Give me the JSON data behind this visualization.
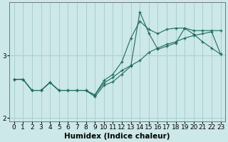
{
  "title": "",
  "xlabel": "Humidex (Indice chaleur)",
  "bg_color": "#cce8e8",
  "grid_color": "#aacfcf",
  "line_color": "#1e6b5e",
  "xlim": [
    -0.5,
    23.5
  ],
  "ylim": [
    1.95,
    3.85
  ],
  "yticks": [
    2,
    3
  ],
  "xticks": [
    0,
    1,
    2,
    3,
    4,
    5,
    6,
    7,
    8,
    9,
    10,
    11,
    12,
    13,
    14,
    15,
    16,
    17,
    18,
    19,
    20,
    21,
    22,
    23
  ],
  "series1_x": [
    0,
    1,
    2,
    3,
    4,
    5,
    6,
    7,
    8,
    9,
    10,
    11,
    12,
    13,
    14,
    15,
    16,
    17,
    18,
    19,
    20,
    21,
    22,
    23
  ],
  "series1_y": [
    2.62,
    2.62,
    2.44,
    2.44,
    2.57,
    2.44,
    2.44,
    2.44,
    2.44,
    2.37,
    2.56,
    2.65,
    2.76,
    2.84,
    2.92,
    3.05,
    3.12,
    3.18,
    3.22,
    3.28,
    3.32,
    3.35,
    3.38,
    3.02
  ],
  "series2_x": [
    0,
    1,
    2,
    3,
    4,
    5,
    6,
    7,
    8,
    9,
    10,
    11,
    12,
    13,
    14,
    15,
    16,
    17,
    18,
    19,
    20,
    21,
    22,
    23
  ],
  "series2_y": [
    2.62,
    2.62,
    2.44,
    2.44,
    2.57,
    2.44,
    2.44,
    2.44,
    2.44,
    2.37,
    2.6,
    2.7,
    2.9,
    3.28,
    3.55,
    3.42,
    3.35,
    3.42,
    3.44,
    3.44,
    3.4,
    3.4,
    3.4,
    3.4
  ],
  "series3_x": [
    0,
    1,
    2,
    3,
    4,
    5,
    6,
    7,
    8,
    9,
    10,
    11,
    12,
    13,
    14,
    15,
    16,
    17,
    18,
    19,
    20,
    21,
    22,
    23
  ],
  "series3_y": [
    2.62,
    2.62,
    2.44,
    2.44,
    2.57,
    2.44,
    2.44,
    2.44,
    2.44,
    2.34,
    2.52,
    2.58,
    2.7,
    2.83,
    3.7,
    3.36,
    3.1,
    3.15,
    3.2,
    3.44,
    3.34,
    3.22,
    3.12,
    3.02
  ],
  "tick_fontsize": 6.5,
  "label_fontsize": 7.5
}
